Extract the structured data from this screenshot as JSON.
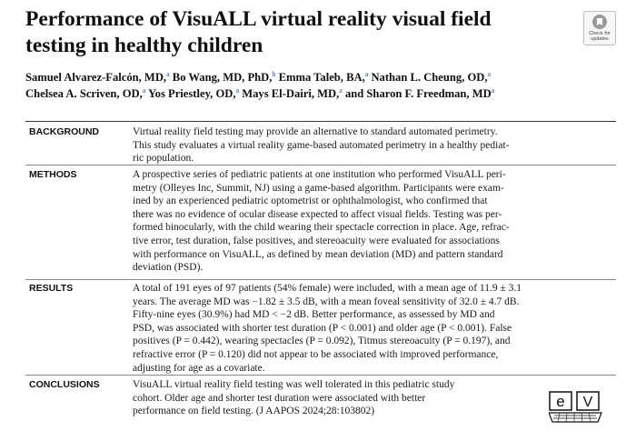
{
  "title": {
    "line1": "Performance of VisuALL virtual reality visual field",
    "line2": "testing in healthy children"
  },
  "check_updates": {
    "line1": "Check for",
    "line2": "updates"
  },
  "authors": {
    "line1": [
      {
        "name": "Samuel Alvarez-Falcón, MD,",
        "sup": "a"
      },
      {
        "name": " Bo Wang, MD, PhD,",
        "sup": "b"
      },
      {
        "name": " Emma Taleb, BA,",
        "sup": "a"
      },
      {
        "name": " Nathan L. Cheung, OD,",
        "sup": "a"
      }
    ],
    "line2": [
      {
        "name": "Chelsea A. Scriven, OD,",
        "sup": "a"
      },
      {
        "name": " Yos Priestley, OD,",
        "sup": "a"
      },
      {
        "name": " Mays El-Dairi, MD,",
        "sup": "a"
      },
      {
        "name": " and Sharon F. Freedman, MD",
        "sup": "a"
      }
    ]
  },
  "sections": [
    {
      "label": "BACKGROUND",
      "lines": [
        "Virtual reality field testing may provide an alternative to standard automated perimetry.",
        "This study evaluates a virtual reality game-based automated perimetry in a healthy pediat-",
        "ric population."
      ]
    },
    {
      "label": "METHODS",
      "lines": [
        "A prospective series of pediatric patients at one institution who performed VisuALL peri-",
        "metry (Olleyes Inc, Summit, NJ) using a game-based algorithm. Participants were exam-",
        "ined by an experienced pediatric optometrist or ophthalmologist, who confirmed that",
        "there was no evidence of ocular disease expected to affect visual fields. Testing was per-",
        "formed binocularly, with the child wearing their spectacle correction in place. Age, refrac-",
        "tive error, test duration, false positives, and stereoacuity were evaluated for associations",
        "with performance on VisuALL, as defined by mean deviation (MD) and pattern standard",
        "deviation (PSD)."
      ]
    },
    {
      "label": "RESULTS",
      "lines": [
        "A total of 191 eyes of 97 patients (54% female) were included, with a mean age of 11.9 ± 3.1",
        "years. The average MD was −1.82 ± 3.5 dB, with a mean foveal sensitivity of 32.0 ± 4.7 dB.",
        "Fifty-nine eyes (30.9%) had MD < −2 dB. Better performance, as assessed by MD and",
        "PSD, was associated with shorter test duration (P < 0.001) and older age (P < 0.001). False",
        "positives (P = 0.442), wearing spectacles (P = 0.092), Titmus stereoacuity (P = 0.197), and",
        "refractive error (P = 0.120) did not appear to be associated with improved performance,",
        "adjusting for age as a covariate."
      ]
    },
    {
      "label": "CONCLUSIONS",
      "lines": [
        "VisuALL virtual reality field testing was well tolerated in this pediatric study",
        "cohort. Older age and shorter test duration were associated with better",
        "performance on field testing.    (J AAPOS 2024;28:103802)"
      ]
    }
  ],
  "ev_logo": {
    "letter1": "e",
    "letter2": "V"
  }
}
